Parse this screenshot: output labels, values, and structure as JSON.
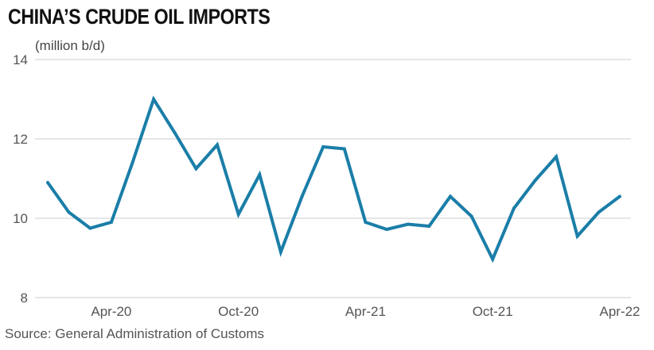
{
  "chart_data": {
    "type": "line",
    "title": "CHINA’S CRUDE OIL IMPORTS",
    "unit_label": "(million b/d)",
    "source": "Source: General Administration of Customs",
    "ylim": [
      8,
      14
    ],
    "y_ticks": [
      "14",
      "12",
      "10",
      "8"
    ],
    "y_tick_values": [
      14,
      12,
      10,
      8
    ],
    "x_tick_labels": [
      "Apr-20",
      "Oct-20",
      "Apr-21",
      "Oct-21",
      "Apr-22"
    ],
    "x_tick_index": [
      3,
      9,
      15,
      21,
      27
    ],
    "grid": true,
    "color": "#1a7ea8",
    "x": [
      "Jan-20",
      "Feb-20",
      "Mar-20",
      "Apr-20",
      "May-20",
      "Jun-20",
      "Jul-20",
      "Aug-20",
      "Sep-20",
      "Oct-20",
      "Nov-20",
      "Dec-20",
      "Jan-21",
      "Feb-21",
      "Mar-21",
      "Apr-21",
      "May-21",
      "Jun-21",
      "Jul-21",
      "Aug-21",
      "Sep-21",
      "Oct-21",
      "Nov-21",
      "Dec-21",
      "Jan-22",
      "Feb-22",
      "Mar-22",
      "Apr-22"
    ],
    "series": [
      {
        "values": [
          10.9,
          10.15,
          9.75,
          9.9,
          11.4,
          13.0,
          12.15,
          11.25,
          11.85,
          10.1,
          11.1,
          9.15,
          10.55,
          11.8,
          11.75,
          9.9,
          9.72,
          9.85,
          9.8,
          10.55,
          10.05,
          8.97,
          10.25,
          10.95,
          11.55,
          9.55,
          10.15,
          10.55
        ]
      }
    ]
  }
}
